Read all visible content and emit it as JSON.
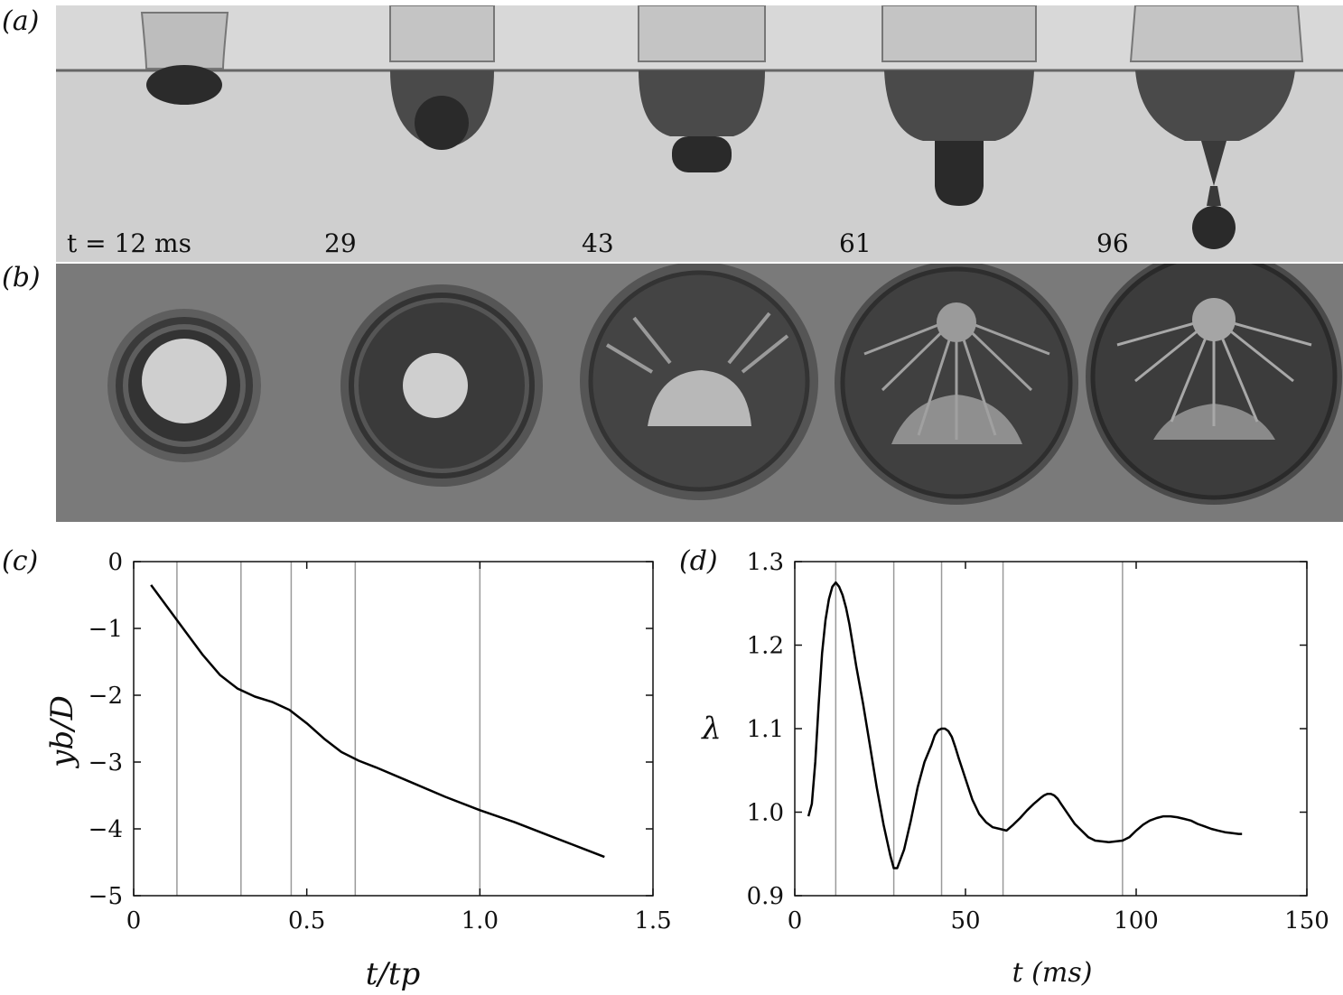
{
  "panel_labels": {
    "a": "(a)",
    "b": "(b)",
    "c": "(c)",
    "d": "(d)"
  },
  "frames": [
    {
      "time_label": "t = 12 ms"
    },
    {
      "time_label": "29"
    },
    {
      "time_label": "43"
    },
    {
      "time_label": "61"
    },
    {
      "time_label": "96"
    }
  ],
  "chart_data": [
    {
      "panel": "(c)",
      "type": "line",
      "xlabel": "t/tp",
      "ylabel": "yb/D",
      "xlim": [
        0,
        1.5
      ],
      "ylim": [
        -5,
        0
      ],
      "xticks": [
        "0",
        "0.5",
        "1.0",
        "1.5"
      ],
      "yticks": [
        "0",
        "−1",
        "−2",
        "−3",
        "−4",
        "−5"
      ],
      "vlines": [
        0.125,
        0.31,
        0.455,
        0.64,
        1.0
      ],
      "series": [
        {
          "x": [
            0.05,
            0.1,
            0.15,
            0.2,
            0.25,
            0.3,
            0.35,
            0.4,
            0.45,
            0.5,
            0.55,
            0.6,
            0.65,
            0.7,
            0.8,
            0.9,
            1.0,
            1.1,
            1.2,
            1.3,
            1.36
          ],
          "y": [
            -0.35,
            -0.7,
            -1.05,
            -1.4,
            -1.7,
            -1.9,
            -2.02,
            -2.1,
            -2.22,
            -2.42,
            -2.65,
            -2.85,
            -2.98,
            -3.08,
            -3.3,
            -3.52,
            -3.72,
            -3.9,
            -4.1,
            -4.3,
            -4.42
          ]
        }
      ]
    },
    {
      "panel": "(d)",
      "type": "line",
      "xlabel": "t (ms)",
      "ylabel": "λ",
      "xlim": [
        0,
        150
      ],
      "ylim": [
        0.9,
        1.3
      ],
      "xticks": [
        "0",
        "50",
        "100",
        "150"
      ],
      "yticks": [
        "1.3",
        "1.2",
        "1.1",
        "1.0",
        "0.9"
      ],
      "vlines": [
        12,
        29,
        43,
        61,
        96
      ],
      "series": [
        {
          "x": [
            4,
            5,
            6,
            7,
            8,
            9,
            10,
            11,
            12,
            13,
            14,
            15,
            16,
            17,
            18,
            20,
            22,
            24,
            26,
            28,
            29,
            30,
            32,
            34,
            36,
            38,
            40,
            41,
            42,
            43,
            44,
            45,
            46,
            47,
            48,
            50,
            52,
            54,
            56,
            58,
            60,
            62,
            64,
            66,
            68,
            70,
            72,
            73,
            74,
            75,
            76,
            77,
            78,
            80,
            82,
            84,
            86,
            88,
            90,
            92,
            94,
            96,
            98,
            100,
            102,
            104,
            106,
            108,
            110,
            112,
            114,
            116,
            118,
            120,
            122,
            124,
            126,
            128,
            130,
            131
          ],
          "y": [
            0.995,
            1.01,
            1.06,
            1.13,
            1.19,
            1.23,
            1.255,
            1.27,
            1.275,
            1.27,
            1.26,
            1.245,
            1.225,
            1.2,
            1.175,
            1.13,
            1.08,
            1.03,
            0.985,
            0.948,
            0.933,
            0.933,
            0.955,
            0.99,
            1.03,
            1.06,
            1.08,
            1.092,
            1.098,
            1.1,
            1.1,
            1.097,
            1.09,
            1.078,
            1.065,
            1.04,
            1.015,
            0.998,
            0.988,
            0.982,
            0.98,
            0.978,
            0.985,
            0.993,
            1.002,
            1.01,
            1.017,
            1.02,
            1.022,
            1.022,
            1.02,
            1.016,
            1.01,
            0.998,
            0.986,
            0.978,
            0.97,
            0.966,
            0.965,
            0.964,
            0.965,
            0.966,
            0.97,
            0.978,
            0.985,
            0.99,
            0.993,
            0.995,
            0.995,
            0.994,
            0.992,
            0.99,
            0.986,
            0.983,
            0.98,
            0.978,
            0.976,
            0.975,
            0.974,
            0.974
          ]
        }
      ]
    }
  ]
}
